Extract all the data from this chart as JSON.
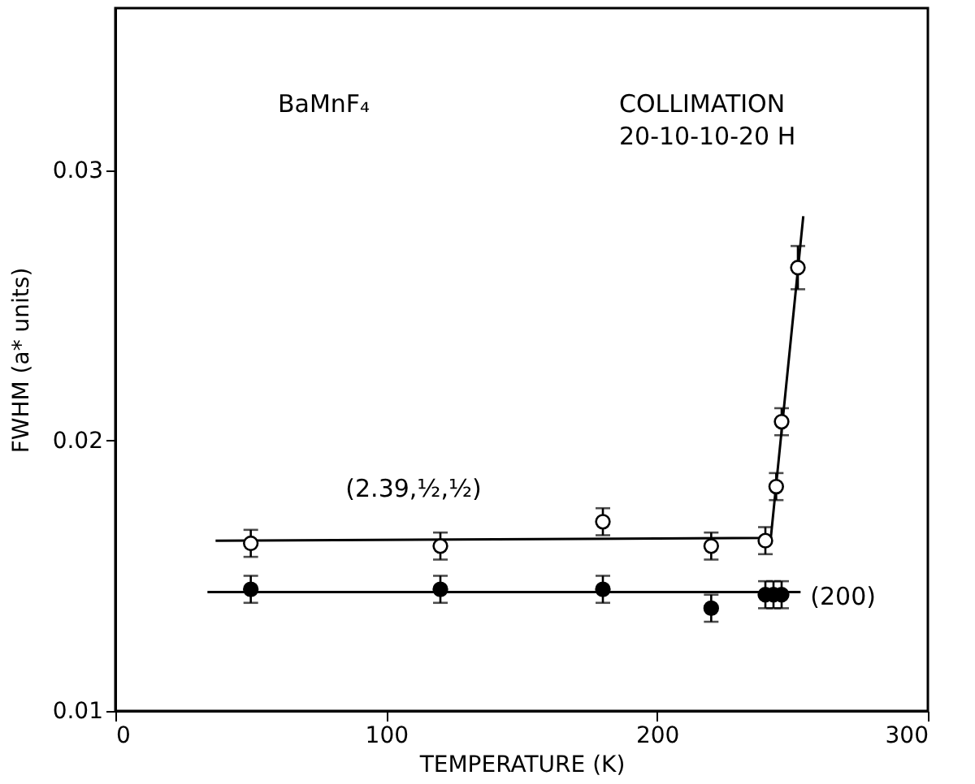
{
  "chart_data": {
    "type": "scatter",
    "xlabel": "TEMPERATURE (K)",
    "ylabel": "FWHM  (a* units)",
    "xlim": [
      0,
      300
    ],
    "xticks": [
      0,
      100,
      200,
      300
    ],
    "ylim": [
      0.01,
      0.036
    ],
    "yticks": [
      0.01,
      0.02,
      0.03
    ],
    "grid": false,
    "marker": "circle",
    "series": [
      {
        "color": "#ffffff",
        "x": [
          50,
          120,
          180,
          220,
          240,
          244,
          246,
          252
        ],
        "values": [
          0.0162,
          0.0161,
          0.017,
          0.0161,
          0.0163,
          0.0183,
          0.0207,
          0.0264
        ],
        "errors": [
          0.0005,
          0.0005,
          0.0005,
          0.0005,
          0.0005,
          0.0005,
          0.0005,
          0.0008
        ]
      },
      {
        "color": "#000000",
        "x": [
          50,
          120,
          180,
          220,
          240,
          243,
          246
        ],
        "values": [
          0.0145,
          0.0145,
          0.0145,
          0.0138,
          0.0143,
          0.0143,
          0.0143
        ],
        "errors": [
          0.0005,
          0.0005,
          0.0005,
          0.0005,
          0.0005,
          0.0005,
          0.0005
        ]
      },
      {
        "type": "line",
        "name": "(2.39,½,½)",
        "marker": "none",
        "line_style": "solid",
        "color": "#000000",
        "x": [
          37,
          242,
          254
        ],
        "values": [
          0.0163,
          0.0164,
          0.0283
        ]
      },
      {
        "type": "line",
        "name": "(200)",
        "marker": "none",
        "line_style": "solid",
        "color": "#000000",
        "x": [
          34,
          253
        ],
        "values": [
          0.0144,
          0.0144
        ]
      }
    ],
    "annotations": [
      "BaMnF₄",
      "COLLIMATION\n20-10-10-20 H"
    ]
  }
}
